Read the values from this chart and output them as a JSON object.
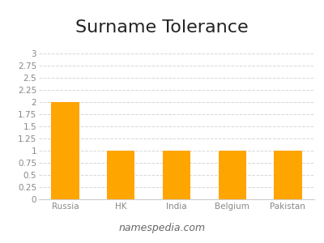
{
  "title": "Surname Tolerance",
  "categories": [
    "Russia",
    "HK",
    "India",
    "Belgium",
    "Pakistan"
  ],
  "values": [
    2,
    1,
    1,
    1,
    1
  ],
  "bar_color": "#FFA500",
  "ylim": [
    0,
    3
  ],
  "yticks": [
    0,
    0.25,
    0.5,
    0.75,
    1.0,
    1.25,
    1.5,
    1.75,
    2.0,
    2.25,
    2.5,
    2.75,
    3.0
  ],
  "grid_color": "#cccccc",
  "background_color": "#ffffff",
  "title_fontsize": 16,
  "tick_fontsize": 7.5,
  "footer_text": "namespedia.com",
  "footer_fontsize": 9,
  "bar_width": 0.5
}
